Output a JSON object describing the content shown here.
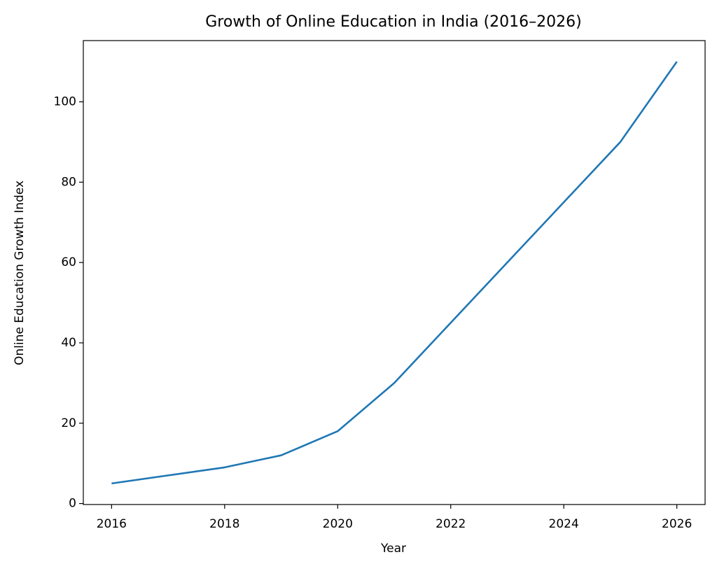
{
  "chart_data": {
    "type": "line",
    "title": "Growth of Online Education in India (2016–2026)",
    "x_label": "Year",
    "y_label": "Online Education Growth Index",
    "x": [
      2016,
      2017,
      2018,
      2019,
      2020,
      2021,
      2022,
      2023,
      2024,
      2025,
      2026
    ],
    "series": [
      {
        "name": "Online Education Growth Index",
        "color": "#1f77b4",
        "values": [
          5,
          7,
          9,
          12,
          18,
          30,
          45,
          60,
          75,
          90,
          110
        ]
      }
    ],
    "xlim": [
      2015.5,
      2026.5
    ],
    "ylim": [
      -0.25,
      115.25
    ],
    "xticks": [
      2016,
      2018,
      2020,
      2022,
      2024,
      2026
    ],
    "yticks": [
      0,
      20,
      40,
      60,
      80,
      100
    ],
    "grid": false
  }
}
